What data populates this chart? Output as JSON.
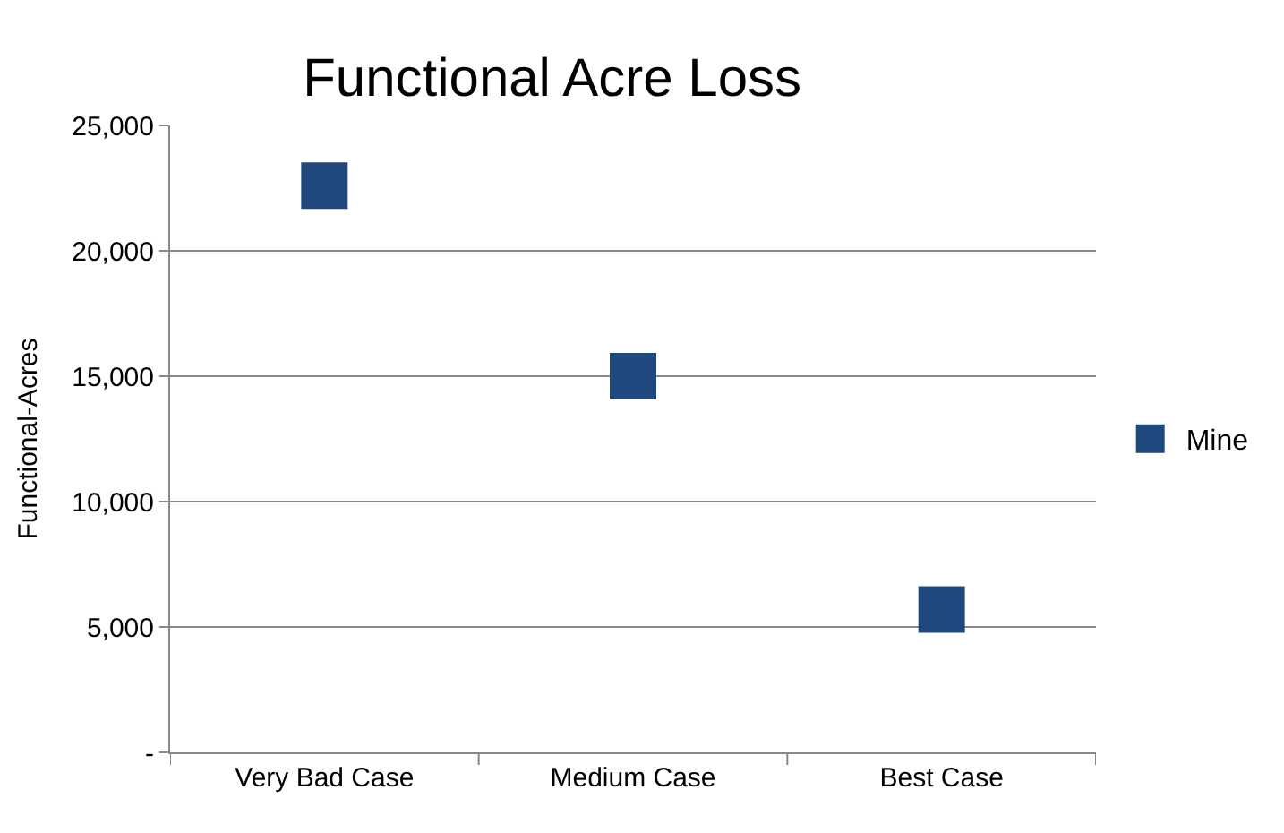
{
  "chart_data": {
    "type": "scatter",
    "title": "Functional Acre Loss",
    "ylabel": "Functional-Acres",
    "categories": [
      "Very Bad Case",
      "Medium Case",
      "Best Case"
    ],
    "series": [
      {
        "name": "Mine",
        "color": "#1f497d",
        "values": [
          22600,
          15000,
          5700
        ]
      }
    ],
    "ylim": [
      0,
      25000
    ],
    "yticks": [
      {
        "value": 0,
        "label": "-"
      },
      {
        "value": 5000,
        "label": "5,000"
      },
      {
        "value": 10000,
        "label": "10,000"
      },
      {
        "value": 15000,
        "label": "15,000"
      },
      {
        "value": 20000,
        "label": "20,000"
      },
      {
        "value": 25000,
        "label": "25,000"
      }
    ],
    "grid": "y",
    "legend": "right",
    "marker": "square"
  }
}
